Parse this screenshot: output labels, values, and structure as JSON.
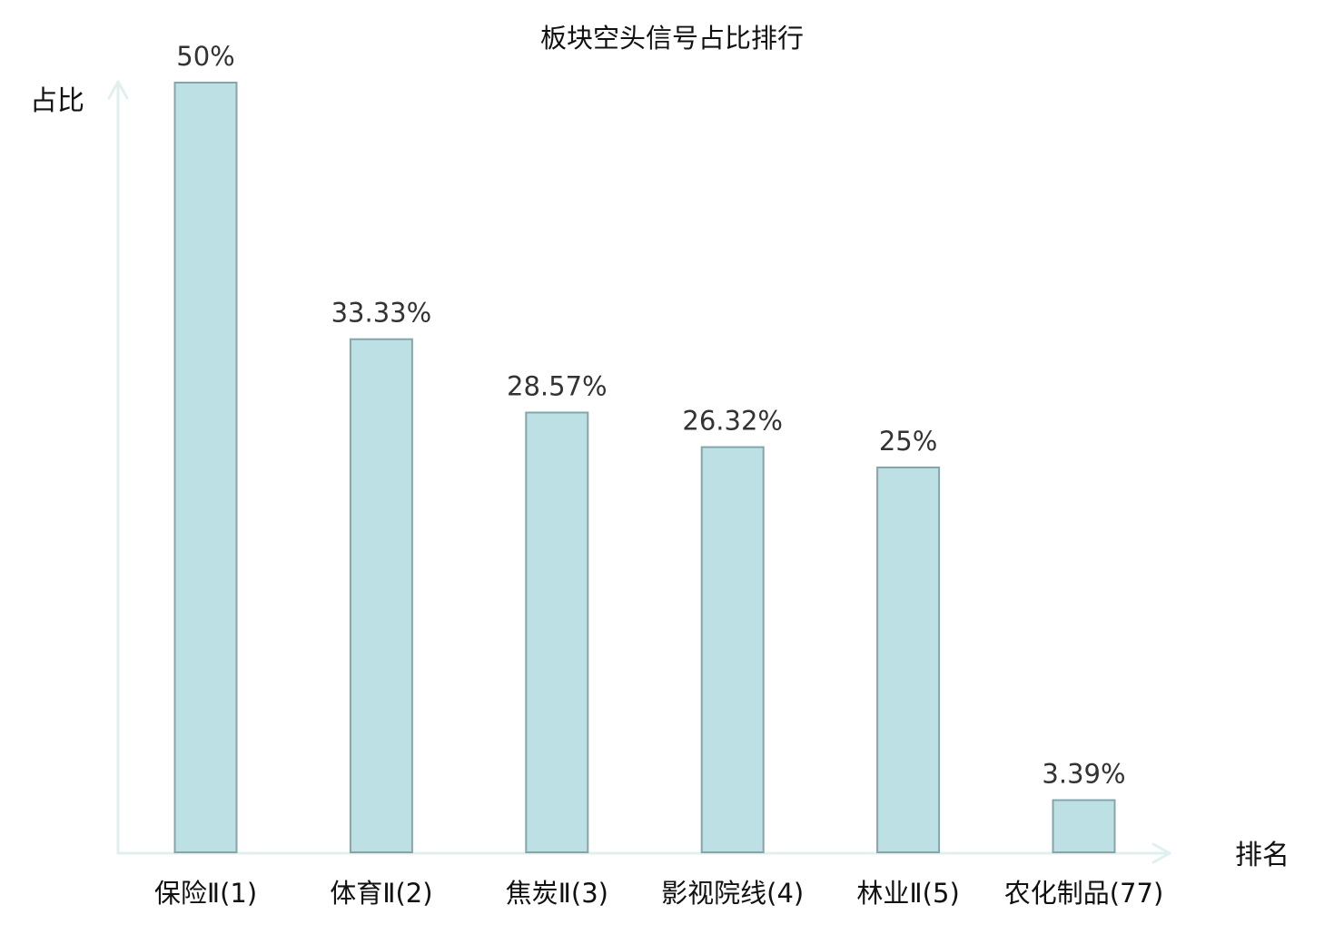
{
  "chart_data": {
    "type": "bar",
    "title": "板块空头信号占比排行",
    "xlabel": "排名",
    "ylabel": "占比",
    "categories": [
      {
        "name": "保险Ⅱ",
        "rank": "(1)",
        "highlight": false
      },
      {
        "name": "体育Ⅱ",
        "rank": "(2)",
        "highlight": false
      },
      {
        "name": "焦炭Ⅱ",
        "rank": "(3)",
        "highlight": false
      },
      {
        "name": "影视院线",
        "rank": "(4)",
        "highlight": false
      },
      {
        "name": "林业Ⅱ",
        "rank": "(5)",
        "highlight": false
      },
      {
        "name": "农化制品",
        "rank": "(77)",
        "highlight": true
      }
    ],
    "values": [
      50,
      33.33,
      28.57,
      26.32,
      25,
      3.39
    ],
    "value_labels": [
      "50%",
      "33.33%",
      "28.57%",
      "26.32%",
      "25%",
      "3.39%"
    ],
    "ylim": [
      0,
      50
    ],
    "grid": false,
    "colors": {
      "bar_fill": "#bce0e3",
      "bar_stroke": "#87a4a8",
      "axis": "#e0f0ef",
      "highlight_text": "#dd0000",
      "normal_text": "#111111"
    }
  }
}
